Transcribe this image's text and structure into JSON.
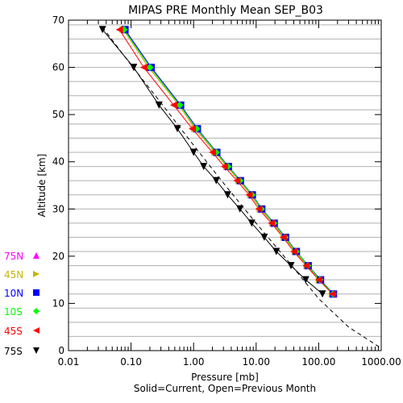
{
  "chart_data": {
    "type": "line",
    "title": "MIPAS PRE Monthly Mean SEP_B03",
    "xlabel": "Pressure [mb]",
    "ylabel": "Altitude [km]",
    "caption": "Solid=Current, Open=Previous Month",
    "x_scale": "log",
    "xlim": [
      0.01,
      1000
    ],
    "ylim": [
      0,
      70
    ],
    "x_ticks": [
      0.01,
      0.1,
      1,
      10,
      100,
      1000
    ],
    "x_tick_labels": [
      "0.01",
      "0.10",
      "1.00",
      "10.00",
      "100.00",
      "1000.00"
    ],
    "y_ticks": [
      0,
      10,
      20,
      30,
      40,
      50,
      60,
      70
    ],
    "y_tick_labels": [
      "0",
      "10",
      "20",
      "30",
      "40",
      "50",
      "60",
      "70"
    ],
    "grid": {
      "horizontal_step_km": 3,
      "vertical": false
    },
    "legend_placement": "left",
    "reference_profile": {
      "style": "dashed",
      "x": [
        0.035,
        0.1,
        0.3,
        1.0,
        3.0,
        10.0,
        30.0,
        100.0,
        300.0,
        1000.0
      ],
      "y": [
        68.5,
        60.5,
        52.5,
        43.5,
        35.5,
        27.0,
        19.5,
        11.0,
        5.0,
        0.5
      ]
    },
    "series": [
      {
        "name": "75N",
        "color": "#ff00ff",
        "marker": "triangle-up",
        "x": [
          0.078,
          0.2,
          0.6,
          1.1,
          2.3,
          3.5,
          5.5,
          8.5,
          12,
          19,
          29,
          43,
          67,
          105,
          170
        ],
        "y": [
          68,
          60,
          52,
          47,
          42,
          39,
          36,
          33,
          30,
          27,
          24,
          21,
          18,
          15,
          12
        ]
      },
      {
        "name": "45N",
        "color": "#c8b400",
        "marker": "triangle-right",
        "x": [
          0.075,
          0.19,
          0.58,
          1.05,
          2.2,
          3.4,
          5.3,
          8.2,
          11.6,
          18.5,
          28,
          42,
          65,
          102,
          165
        ],
        "y": [
          68,
          60,
          52,
          47,
          42,
          39,
          36,
          33,
          30,
          27,
          24,
          21,
          18,
          15,
          12
        ]
      },
      {
        "name": "10N",
        "color": "#0000ff",
        "marker": "square",
        "x": [
          0.08,
          0.21,
          0.62,
          1.15,
          2.35,
          3.6,
          5.6,
          8.7,
          12.3,
          19.5,
          29.5,
          44,
          68,
          107,
          172
        ],
        "y": [
          68,
          60,
          52,
          47,
          42,
          39,
          36,
          33,
          30,
          27,
          24,
          21,
          18,
          15,
          12
        ]
      },
      {
        "name": "10S",
        "color": "#00ff00",
        "marker": "diamond",
        "x": [
          0.077,
          0.2,
          0.6,
          1.12,
          2.3,
          3.55,
          5.5,
          8.6,
          12.1,
          19.2,
          29,
          43.5,
          67,
          105,
          170
        ],
        "y": [
          68,
          60,
          52,
          47,
          42,
          39,
          36,
          33,
          30,
          27,
          24,
          21,
          18,
          15,
          12
        ]
      },
      {
        "name": "45S",
        "color": "#ff0000",
        "marker": "triangle-left",
        "x": [
          0.065,
          0.16,
          0.48,
          0.95,
          2.0,
          3.1,
          4.9,
          7.7,
          11,
          17.5,
          27,
          40,
          63,
          100,
          165
        ],
        "y": [
          68,
          60,
          52,
          47,
          42,
          39,
          36,
          33,
          30,
          27,
          24,
          21,
          18,
          15,
          12
        ]
      },
      {
        "name": "75S",
        "color": "#000000",
        "marker": "triangle-down",
        "x": [
          0.035,
          0.11,
          0.28,
          0.55,
          1.0,
          1.45,
          2.3,
          3.5,
          5.5,
          8.5,
          13.5,
          21,
          36,
          62,
          115
        ],
        "y": [
          68,
          60,
          52,
          47,
          42,
          39,
          36,
          33,
          30,
          27,
          24,
          21,
          18,
          15,
          12
        ]
      }
    ]
  }
}
